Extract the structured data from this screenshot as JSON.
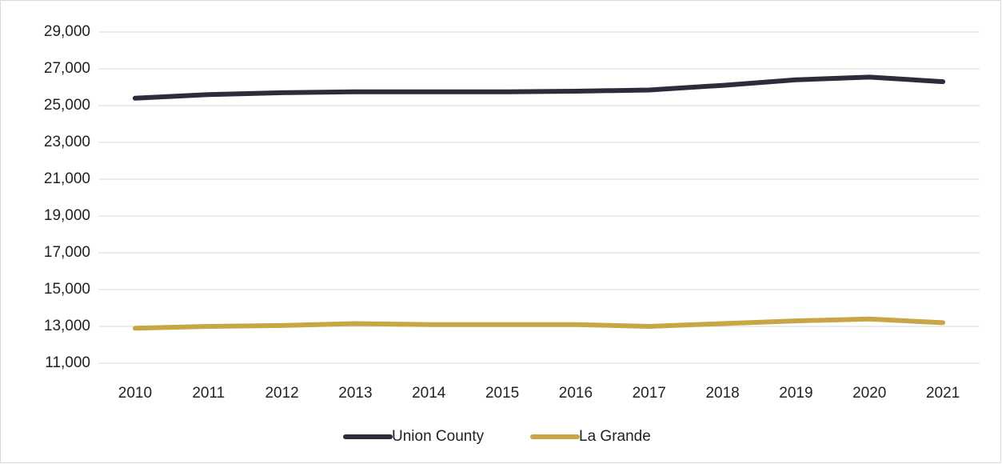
{
  "chart_data": {
    "type": "line",
    "categories": [
      "2010",
      "2011",
      "2012",
      "2013",
      "2014",
      "2015",
      "2016",
      "2017",
      "2018",
      "2019",
      "2020",
      "2021"
    ],
    "series": [
      {
        "name": "Union County",
        "color": "#2c2c3c",
        "values": [
          25400,
          25600,
          25700,
          25750,
          25750,
          25750,
          25780,
          25850,
          26100,
          26400,
          26550,
          26300
        ]
      },
      {
        "name": "La Grande",
        "color": "#c8a646",
        "values": [
          12900,
          13000,
          13050,
          13150,
          13100,
          13100,
          13100,
          13000,
          13150,
          13300,
          13400,
          13200
        ]
      }
    ],
    "ylim": [
      11000,
      29000
    ],
    "yticks": [
      {
        "value": 11000,
        "label": "11,000"
      },
      {
        "value": 13000,
        "label": "13,000"
      },
      {
        "value": 15000,
        "label": "15,000"
      },
      {
        "value": 17000,
        "label": "17,000"
      },
      {
        "value": 19000,
        "label": "19,000"
      },
      {
        "value": 21000,
        "label": "21,000"
      },
      {
        "value": 23000,
        "label": "23,000"
      },
      {
        "value": 25000,
        "label": "25,000"
      },
      {
        "value": 27000,
        "label": "27,000"
      },
      {
        "value": 29000,
        "label": "29,000"
      }
    ],
    "grid": true,
    "legend": "bottom"
  }
}
